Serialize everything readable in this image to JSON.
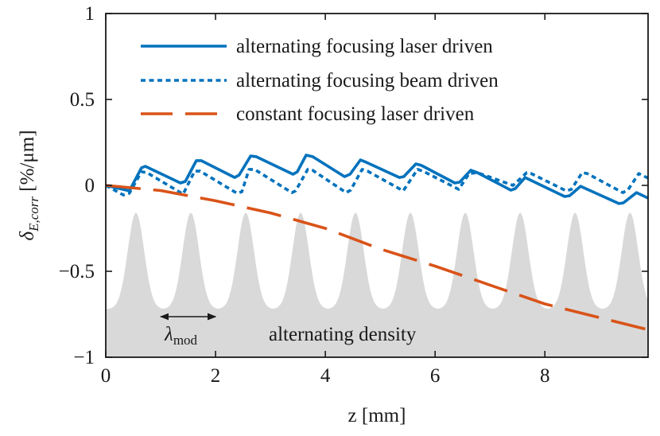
{
  "chart_data": {
    "type": "line",
    "title": "",
    "xlabel": "z [mm]",
    "ylabel": "δ",
    "ylabel_sub": "E,corr",
    "ylabel_unit": " [%/μm]",
    "xlim": [
      0,
      9.88
    ],
    "ylim": [
      -1,
      1
    ],
    "xticks": [
      0,
      2,
      4,
      6,
      8
    ],
    "xtick_labels": [
      "0",
      "2",
      "4",
      "6",
      "8"
    ],
    "yticks": [
      1,
      0.5,
      0,
      -0.5,
      -1
    ],
    "ytick_labels": [
      "1",
      "0.5",
      "0",
      "−0.5",
      "−1"
    ],
    "grid": false,
    "legend_position": "top",
    "series": [
      {
        "name": "alternating focusing laser driven",
        "color": "#0072BD",
        "style": "solid",
        "x": [
          0,
          0.43,
          0.65,
          0.72,
          1.36,
          1.45,
          1.65,
          1.74,
          2.35,
          2.43,
          2.64,
          2.74,
          3.41,
          3.49,
          3.65,
          3.77,
          4.35,
          4.45,
          4.64,
          4.75,
          5.35,
          5.43,
          5.65,
          5.75,
          6.36,
          6.45,
          6.65,
          6.77,
          7.38,
          7.46,
          7.64,
          8.36,
          8.45,
          8.65,
          9.35,
          9.43,
          9.67,
          9.88
        ],
        "y": [
          0,
          -0.032,
          0.102,
          0.111,
          0.014,
          0.023,
          0.144,
          0.144,
          0.046,
          0.06,
          0.171,
          0.167,
          0.065,
          0.079,
          0.176,
          0.167,
          0.051,
          0.065,
          0.148,
          0.134,
          0.046,
          0.051,
          0.125,
          0.116,
          0.014,
          0.019,
          0.088,
          0.074,
          -0.028,
          -0.019,
          0.046,
          -0.065,
          -0.06,
          -0.005,
          -0.106,
          -0.102,
          -0.042,
          -0.074
        ]
      },
      {
        "name": "alternating focusing beam driven",
        "color": "#0072BD",
        "style": "dotted",
        "x": [
          0,
          0.32,
          0.43,
          0.65,
          0.75,
          1.41,
          1.62,
          1.72,
          2.39,
          2.48,
          2.61,
          2.71,
          3.39,
          3.46,
          3.68,
          3.77,
          4.38,
          4.46,
          4.67,
          4.77,
          5.42,
          5.68,
          5.78,
          6.43,
          6.62,
          6.77,
          7.42,
          7.67,
          7.75,
          8.39,
          8.48,
          8.68,
          8.77,
          9.42,
          9.51,
          9.71,
          9.88
        ],
        "y": [
          0,
          -0.056,
          -0.046,
          0.079,
          0.074,
          -0.051,
          0.083,
          0.083,
          -0.046,
          -0.037,
          0.093,
          0.093,
          -0.042,
          -0.032,
          0.093,
          0.088,
          -0.042,
          -0.028,
          0.093,
          0.083,
          -0.032,
          0.093,
          0.083,
          -0.023,
          0.069,
          0.074,
          0.0,
          0.074,
          0.069,
          -0.032,
          -0.023,
          0.074,
          0.069,
          -0.042,
          -0.028,
          0.069,
          0.042
        ]
      },
      {
        "name": "constant focusing laser driven",
        "color": "#D95319",
        "style": "dashed",
        "x": [
          0,
          1,
          2,
          3,
          4,
          5,
          6,
          7,
          8,
          9,
          9.88
        ],
        "y": [
          0,
          -0.03,
          -0.09,
          -0.16,
          -0.25,
          -0.37,
          -0.47,
          -0.58,
          -0.69,
          -0.77,
          -0.84
        ]
      }
    ],
    "density_profile": {
      "label": "alternating density",
      "color": "#D9D9D9",
      "baseline": -0.72,
      "peak": -0.16,
      "peak_positions": [
        0.55,
        1.55,
        2.55,
        3.55,
        4.55,
        5.55,
        6.55,
        7.55,
        8.55,
        9.55
      ]
    },
    "annotations": {
      "lambda_symbol": "λ",
      "lambda_sub": "mod",
      "lambda_span": [
        1.0,
        2.0
      ]
    }
  }
}
